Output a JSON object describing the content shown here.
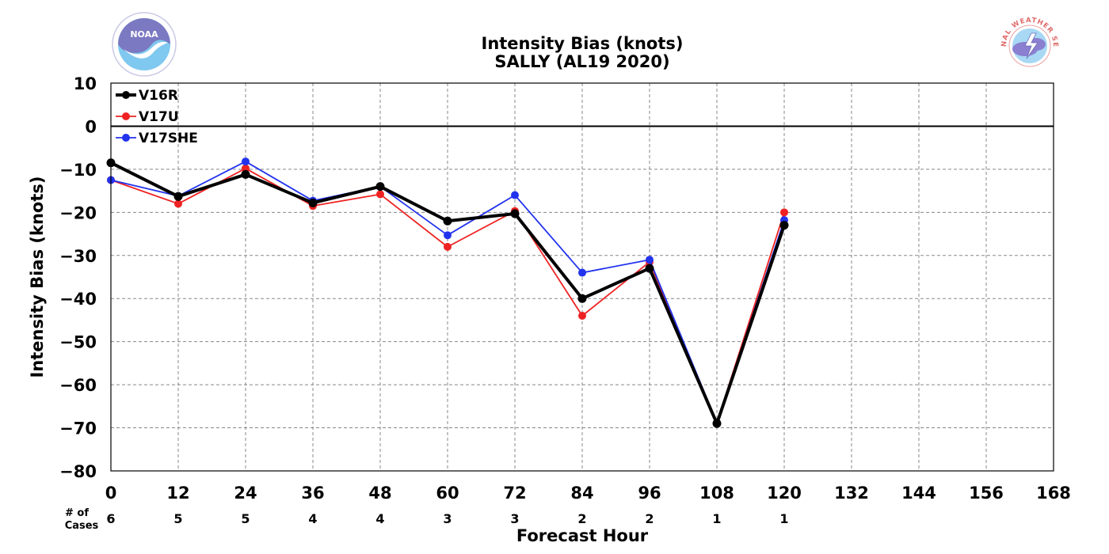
{
  "logos": {
    "left_icon": "noaa-logo-icon",
    "left_text": "NOAA",
    "right_icon": "nws-logo-icon",
    "right_text": "NATIONAL WEATHER SERVICE"
  },
  "colors": {
    "V16R": "#000000",
    "V17U": "#ee2222",
    "V17SHE": "#2233ee",
    "grid": "#888888",
    "zero_line": "#000000"
  },
  "chart_data": {
    "type": "line",
    "title": "Intensity Bias (knots)",
    "subtitle": "SALLY (AL19 2020)",
    "xlabel": "Forecast Hour",
    "ylabel": "Intensity Bias (knots)",
    "xlim": [
      0,
      168
    ],
    "ylim": [
      -80,
      10
    ],
    "x_ticks": [
      0,
      12,
      24,
      36,
      48,
      60,
      72,
      84,
      96,
      108,
      120,
      132,
      144,
      156,
      168
    ],
    "y_ticks": [
      10,
      0,
      -10,
      -20,
      -30,
      -40,
      -50,
      -60,
      -70,
      -80
    ],
    "grid": true,
    "legend_position": "top-left",
    "cases_label": [
      "# of",
      "Cases"
    ],
    "cases": [
      6,
      5,
      5,
      4,
      4,
      3,
      3,
      2,
      2,
      1,
      1
    ],
    "x": [
      0,
      12,
      24,
      36,
      48,
      60,
      72,
      84,
      96,
      108,
      120
    ],
    "series": [
      {
        "name": "V16R",
        "values": [
          -8.5,
          -16.3,
          -11.2,
          -17.8,
          -14.0,
          -22.0,
          -20.3,
          -40.0,
          -33.0,
          -69.0,
          -23.0
        ]
      },
      {
        "name": "V17U",
        "values": [
          -12.5,
          -18.0,
          -9.8,
          -18.5,
          -15.8,
          -28.0,
          -19.7,
          -44.0,
          -31.5,
          -68.8,
          -20.0
        ]
      },
      {
        "name": "V17SHE",
        "values": [
          -12.5,
          -16.2,
          -8.2,
          -17.3,
          -14.0,
          -25.3,
          -16.0,
          -34.0,
          -31.0,
          -68.8,
          -21.8
        ]
      }
    ]
  }
}
